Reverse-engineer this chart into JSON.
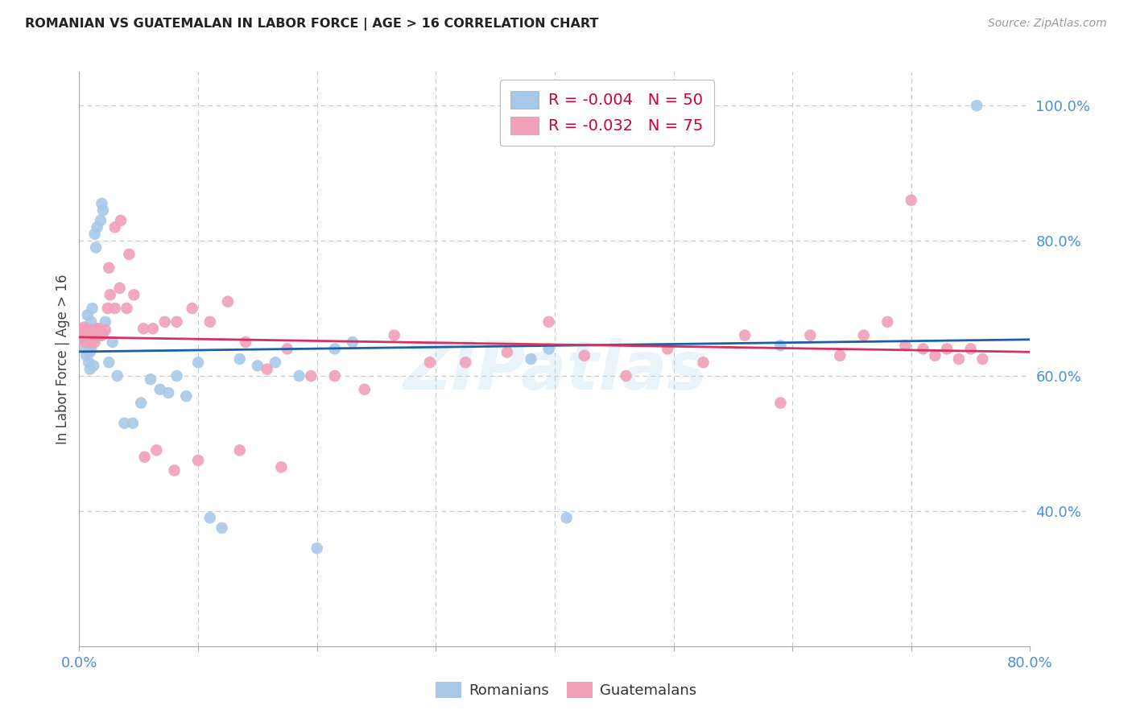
{
  "title": "ROMANIAN VS GUATEMALAN IN LABOR FORCE | AGE > 16 CORRELATION CHART",
  "source": "Source: ZipAtlas.com",
  "ylabel": "In Labor Force | Age > 16",
  "xlim": [
    0.0,
    0.8
  ],
  "ylim": [
    0.2,
    1.05
  ],
  "xticks": [
    0.0,
    0.1,
    0.2,
    0.3,
    0.4,
    0.5,
    0.6,
    0.7,
    0.8
  ],
  "xticklabels": [
    "0.0%",
    "",
    "",
    "",
    "",
    "",
    "",
    "",
    "80.0%"
  ],
  "yticks": [
    0.4,
    0.6,
    0.8,
    1.0
  ],
  "yticklabels": [
    "40.0%",
    "60.0%",
    "80.0%",
    "100.0%"
  ],
  "grid_color": "#c8c8c8",
  "background_color": "#ffffff",
  "romanian_color": "#a8c8e8",
  "guatemalan_color": "#f0a0b8",
  "romanian_line_color": "#1a5fa8",
  "guatemalan_line_color": "#d43060",
  "legend_R_romanian": "-0.004",
  "legend_N_romanian": "50",
  "legend_R_guatemalan": "-0.032",
  "legend_N_guatemalan": "75",
  "watermark": "ZIPatlas",
  "romanian_x": [
    0.002,
    0.003,
    0.004,
    0.005,
    0.006,
    0.007,
    0.007,
    0.008,
    0.009,
    0.009,
    0.01,
    0.01,
    0.011,
    0.012,
    0.012,
    0.013,
    0.014,
    0.015,
    0.016,
    0.017,
    0.018,
    0.019,
    0.02,
    0.022,
    0.025,
    0.028,
    0.032,
    0.038,
    0.045,
    0.052,
    0.06,
    0.068,
    0.075,
    0.082,
    0.09,
    0.1,
    0.11,
    0.12,
    0.135,
    0.15,
    0.165,
    0.185,
    0.2,
    0.215,
    0.23,
    0.38,
    0.395,
    0.41,
    0.59,
    0.755
  ],
  "romanian_y": [
    0.66,
    0.655,
    0.65,
    0.64,
    0.63,
    0.67,
    0.69,
    0.62,
    0.61,
    0.635,
    0.68,
    0.64,
    0.7,
    0.615,
    0.655,
    0.81,
    0.79,
    0.82,
    0.67,
    0.665,
    0.83,
    0.855,
    0.845,
    0.68,
    0.62,
    0.65,
    0.6,
    0.53,
    0.53,
    0.56,
    0.595,
    0.58,
    0.575,
    0.6,
    0.57,
    0.62,
    0.39,
    0.375,
    0.625,
    0.615,
    0.62,
    0.6,
    0.345,
    0.64,
    0.65,
    0.625,
    0.64,
    0.39,
    0.645,
    1.0
  ],
  "guatemalan_x": [
    0.002,
    0.003,
    0.004,
    0.005,
    0.005,
    0.006,
    0.007,
    0.008,
    0.008,
    0.009,
    0.01,
    0.01,
    0.011,
    0.012,
    0.013,
    0.014,
    0.015,
    0.016,
    0.017,
    0.018,
    0.019,
    0.02,
    0.022,
    0.024,
    0.026,
    0.03,
    0.034,
    0.04,
    0.046,
    0.054,
    0.062,
    0.072,
    0.082,
    0.095,
    0.11,
    0.125,
    0.14,
    0.158,
    0.175,
    0.195,
    0.215,
    0.24,
    0.265,
    0.295,
    0.325,
    0.36,
    0.395,
    0.425,
    0.46,
    0.495,
    0.525,
    0.56,
    0.59,
    0.615,
    0.64,
    0.66,
    0.68,
    0.695,
    0.71,
    0.72,
    0.73,
    0.74,
    0.75,
    0.76,
    0.025,
    0.03,
    0.035,
    0.042,
    0.055,
    0.065,
    0.08,
    0.1,
    0.135,
    0.17,
    0.7
  ],
  "guatemalan_y": [
    0.665,
    0.668,
    0.672,
    0.66,
    0.65,
    0.655,
    0.66,
    0.658,
    0.665,
    0.66,
    0.668,
    0.65,
    0.66,
    0.655,
    0.65,
    0.66,
    0.665,
    0.67,
    0.668,
    0.66,
    0.66,
    0.662,
    0.668,
    0.7,
    0.72,
    0.7,
    0.73,
    0.7,
    0.72,
    0.67,
    0.67,
    0.68,
    0.68,
    0.7,
    0.68,
    0.71,
    0.65,
    0.61,
    0.64,
    0.6,
    0.6,
    0.58,
    0.66,
    0.62,
    0.62,
    0.635,
    0.68,
    0.63,
    0.6,
    0.64,
    0.62,
    0.66,
    0.56,
    0.66,
    0.63,
    0.66,
    0.68,
    0.645,
    0.64,
    0.63,
    0.64,
    0.625,
    0.64,
    0.625,
    0.76,
    0.82,
    0.83,
    0.78,
    0.48,
    0.49,
    0.46,
    0.475,
    0.49,
    0.465,
    0.86
  ]
}
